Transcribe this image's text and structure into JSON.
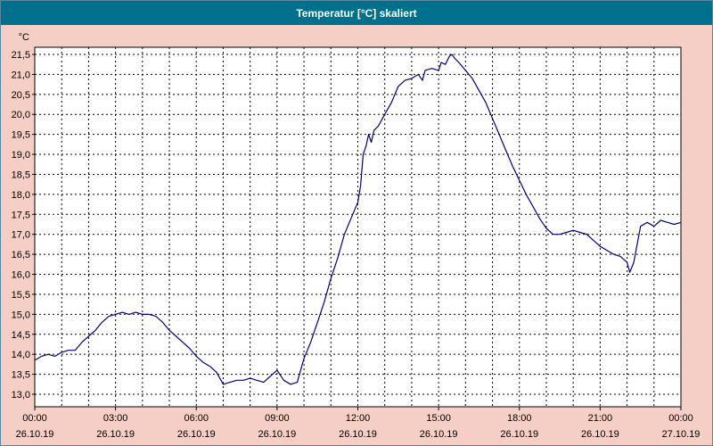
{
  "window": {
    "title": "Temperatur [°C] skaliert"
  },
  "colors": {
    "titlebar_bg": "#00708c",
    "titlebar_text": "#ffffff",
    "background": "#f5cfc6",
    "plot_bg": "#ffffff",
    "line": "#000080",
    "grid": "#000000",
    "axis_text": "#000000"
  },
  "chart_data": {
    "type": "line",
    "title": "Temperatur [°C] skaliert",
    "ylabel": "°C",
    "ylim": [
      13.0,
      21.5
    ],
    "ytick_step": 0.5,
    "yticks": [
      "21,5",
      "21,0",
      "20,5",
      "20,0",
      "19,5",
      "19,0",
      "18,5",
      "18,0",
      "17,5",
      "17,0",
      "16,5",
      "16,0",
      "15,5",
      "15,0",
      "14,5",
      "14,0",
      "13,5",
      "13,0"
    ],
    "xlim": [
      0,
      24
    ],
    "xtick_hours": [
      0,
      3,
      6,
      9,
      12,
      15,
      18,
      21,
      24
    ],
    "xticks": [
      {
        "time": "00:00",
        "date": "26.10.19"
      },
      {
        "time": "03:00",
        "date": "26.10.19"
      },
      {
        "time": "06:00",
        "date": "26.10.19"
      },
      {
        "time": "09:00",
        "date": "26.10.19"
      },
      {
        "time": "12:00",
        "date": "26.10.19"
      },
      {
        "time": "15:00",
        "date": "26.10.19"
      },
      {
        "time": "18:00",
        "date": "26.10.19"
      },
      {
        "time": "21:00",
        "date": "26.10.19"
      },
      {
        "time": "00:00",
        "date": "27.10.19"
      }
    ],
    "grid": "dashed",
    "legend": "none",
    "series": [
      {
        "name": "Temperatur",
        "color": "#000080",
        "points": [
          [
            0,
            13.85
          ],
          [
            0.25,
            13.95
          ],
          [
            0.5,
            14.0
          ],
          [
            0.75,
            13.95
          ],
          [
            1,
            14.05
          ],
          [
            1.25,
            14.1
          ],
          [
            1.5,
            14.1
          ],
          [
            1.75,
            14.3
          ],
          [
            2,
            14.45
          ],
          [
            2.25,
            14.6
          ],
          [
            2.5,
            14.8
          ],
          [
            2.75,
            14.95
          ],
          [
            3,
            15.0
          ],
          [
            3.25,
            15.05
          ],
          [
            3.5,
            15.0
          ],
          [
            3.75,
            15.05
          ],
          [
            4,
            15.0
          ],
          [
            4.25,
            15.0
          ],
          [
            4.5,
            14.95
          ],
          [
            4.75,
            14.8
          ],
          [
            5,
            14.6
          ],
          [
            5.25,
            14.45
          ],
          [
            5.5,
            14.3
          ],
          [
            5.75,
            14.15
          ],
          [
            6,
            13.95
          ],
          [
            6.25,
            13.8
          ],
          [
            6.5,
            13.7
          ],
          [
            6.75,
            13.55
          ],
          [
            7,
            13.25
          ],
          [
            7.25,
            13.3
          ],
          [
            7.5,
            13.35
          ],
          [
            7.75,
            13.35
          ],
          [
            8,
            13.4
          ],
          [
            8.25,
            13.35
          ],
          [
            8.5,
            13.3
          ],
          [
            8.75,
            13.45
          ],
          [
            9,
            13.6
          ],
          [
            9.25,
            13.35
          ],
          [
            9.5,
            13.25
          ],
          [
            9.75,
            13.3
          ],
          [
            10,
            13.9
          ],
          [
            10.25,
            14.3
          ],
          [
            10.5,
            14.8
          ],
          [
            10.75,
            15.3
          ],
          [
            11,
            15.9
          ],
          [
            11.25,
            16.4
          ],
          [
            11.5,
            17.0
          ],
          [
            11.75,
            17.4
          ],
          [
            12,
            17.8
          ],
          [
            12.1,
            18.2
          ],
          [
            12.2,
            19.0
          ],
          [
            12.3,
            19.2
          ],
          [
            12.4,
            19.5
          ],
          [
            12.5,
            19.3
          ],
          [
            12.6,
            19.6
          ],
          [
            12.75,
            19.7
          ],
          [
            13,
            20.0
          ],
          [
            13.25,
            20.3
          ],
          [
            13.5,
            20.7
          ],
          [
            13.75,
            20.85
          ],
          [
            14,
            20.9
          ],
          [
            14.25,
            21.0
          ],
          [
            14.4,
            20.85
          ],
          [
            14.5,
            21.1
          ],
          [
            14.75,
            21.15
          ],
          [
            15,
            21.1
          ],
          [
            15.1,
            21.3
          ],
          [
            15.25,
            21.25
          ],
          [
            15.4,
            21.45
          ],
          [
            15.5,
            21.5
          ],
          [
            15.6,
            21.4
          ],
          [
            15.75,
            21.3
          ],
          [
            16,
            21.1
          ],
          [
            16.25,
            20.9
          ],
          [
            16.5,
            20.6
          ],
          [
            16.75,
            20.3
          ],
          [
            17,
            19.9
          ],
          [
            17.25,
            19.5
          ],
          [
            17.5,
            19.1
          ],
          [
            17.75,
            18.7
          ],
          [
            18,
            18.35
          ],
          [
            18.25,
            18.0
          ],
          [
            18.5,
            17.7
          ],
          [
            18.75,
            17.4
          ],
          [
            19,
            17.15
          ],
          [
            19.25,
            17.0
          ],
          [
            19.5,
            17.0
          ],
          [
            19.75,
            17.05
          ],
          [
            20,
            17.1
          ],
          [
            20.25,
            17.05
          ],
          [
            20.5,
            17.0
          ],
          [
            20.75,
            16.85
          ],
          [
            21,
            16.7
          ],
          [
            21.25,
            16.6
          ],
          [
            21.5,
            16.5
          ],
          [
            21.75,
            16.45
          ],
          [
            22,
            16.3
          ],
          [
            22.1,
            16.05
          ],
          [
            22.25,
            16.3
          ],
          [
            22.5,
            17.2
          ],
          [
            22.75,
            17.3
          ],
          [
            23,
            17.2
          ],
          [
            23.25,
            17.35
          ],
          [
            23.5,
            17.3
          ],
          [
            23.75,
            17.25
          ],
          [
            24,
            17.3
          ]
        ]
      }
    ]
  }
}
